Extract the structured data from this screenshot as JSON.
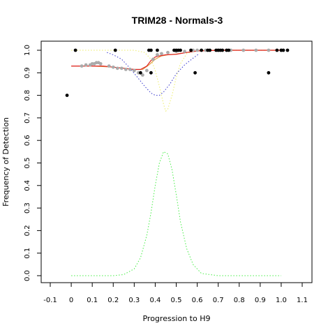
{
  "chart_data": {
    "type": "scatter",
    "title": "TRIM28 - Normals-3",
    "xlabel": "Progression to H9",
    "ylabel": "Frequency of Detection",
    "xlim": [
      -0.1,
      1.1
    ],
    "ylim": [
      0.0,
      1.0
    ],
    "x_ticks": [
      "-0.1",
      "0",
      "0.1",
      "0.2",
      "0.3",
      "0.4",
      "0.5",
      "0.6",
      "0.7",
      "0.8",
      "0.9",
      "1.0",
      "1.1"
    ],
    "y_ticks": [
      "0.0",
      "0.1",
      "0.2",
      "0.3",
      "0.4",
      "0.5",
      "0.6",
      "0.7",
      "0.8",
      "0.9",
      "1.0"
    ],
    "grid": false,
    "legend": "none",
    "colors": {
      "points": "#000000",
      "smoothed_points": "#aaaaaa",
      "red_fit": "#dd2222",
      "orange_fit": "#e6a24a",
      "blue_dotted": "#3333cc",
      "yellow_dotted": "#f0f080",
      "green_dotted": "#44ee44"
    },
    "series": [
      {
        "kind": "points",
        "x": [
          -0.02,
          0.02,
          0.21,
          0.33,
          0.37,
          0.38,
          0.38,
          0.41,
          0.49,
          0.5,
          0.51,
          0.52,
          0.57,
          0.59,
          0.62,
          0.65,
          0.66,
          0.69,
          0.7,
          0.71,
          0.72,
          0.74,
          0.75,
          0.94,
          0.98,
          1.0,
          1.01,
          1.03
        ],
        "y": [
          0.8,
          1.0,
          1.0,
          0.9,
          1.0,
          1.0,
          0.9,
          1.0,
          1.0,
          1.0,
          1.0,
          1.0,
          1.0,
          0.9,
          1.0,
          1.0,
          1.0,
          1.0,
          1.0,
          1.0,
          1.0,
          1.0,
          1.0,
          0.9,
          1.0,
          1.0,
          1.0,
          1.0
        ]
      },
      {
        "kind": "smoothed_points",
        "x": [
          0.05,
          0.07,
          0.09,
          0.1,
          0.11,
          0.12,
          0.13,
          0.14,
          0.18,
          0.2,
          0.22,
          0.24,
          0.26,
          0.28,
          0.3,
          0.32,
          0.34,
          0.36,
          0.39,
          0.41,
          0.43,
          0.46,
          0.5,
          0.54,
          0.58,
          0.6,
          0.64,
          0.7,
          0.76,
          0.82,
          0.88,
          0.94,
          1.0
        ],
        "y": [
          0.93,
          0.935,
          0.935,
          0.94,
          0.94,
          0.945,
          0.945,
          0.94,
          0.93,
          0.925,
          0.92,
          0.92,
          0.915,
          0.915,
          0.91,
          0.9,
          0.89,
          0.91,
          0.96,
          0.98,
          0.985,
          0.99,
          0.995,
          0.995,
          1.0,
          1.0,
          1.0,
          1.0,
          1.0,
          1.0,
          1.0,
          1.0,
          1.0
        ]
      },
      {
        "kind": "red_fit",
        "x": [
          0.0,
          0.05,
          0.1,
          0.15,
          0.2,
          0.25,
          0.3,
          0.33,
          0.36,
          0.38,
          0.4,
          0.42,
          0.45,
          0.5,
          0.55,
          0.6,
          0.7,
          0.8,
          0.9,
          1.0
        ],
        "y": [
          0.93,
          0.93,
          0.93,
          0.93,
          0.925,
          0.92,
          0.915,
          0.915,
          0.93,
          0.955,
          0.97,
          0.975,
          0.98,
          0.982,
          0.99,
          0.997,
          1.0,
          1.0,
          1.0,
          1.0
        ]
      },
      {
        "kind": "orange_fit",
        "x": [
          0.0,
          0.1,
          0.2,
          0.25,
          0.3,
          0.34,
          0.37,
          0.4,
          0.43,
          0.46,
          0.5,
          0.55,
          0.6,
          0.7,
          0.8,
          0.9,
          1.0
        ],
        "y": [
          0.93,
          0.93,
          0.925,
          0.92,
          0.915,
          0.915,
          0.935,
          0.96,
          0.975,
          0.98,
          0.983,
          0.99,
          0.997,
          1.0,
          1.0,
          1.0,
          1.0
        ]
      },
      {
        "kind": "blue_dotted",
        "x": [
          0.17,
          0.2,
          0.24,
          0.28,
          0.32,
          0.35,
          0.38,
          0.4,
          0.42,
          0.44,
          0.47,
          0.5,
          0.54,
          0.58,
          0.61
        ],
        "y": [
          0.99,
          0.98,
          0.96,
          0.92,
          0.875,
          0.84,
          0.81,
          0.8,
          0.8,
          0.815,
          0.85,
          0.895,
          0.935,
          0.965,
          0.985
        ]
      },
      {
        "kind": "yellow_dotted",
        "x": [
          0.0,
          0.1,
          0.2,
          0.3,
          0.35,
          0.38,
          0.4,
          0.42,
          0.44,
          0.45,
          0.46,
          0.48,
          0.5,
          0.52,
          0.55,
          0.6,
          0.7,
          1.0
        ],
        "y": [
          1.0,
          1.0,
          1.0,
          1.0,
          0.99,
          0.96,
          0.91,
          0.84,
          0.76,
          0.73,
          0.74,
          0.8,
          0.88,
          0.94,
          0.985,
          1.0,
          1.0,
          1.0
        ]
      },
      {
        "kind": "green_dotted",
        "x": [
          0.0,
          0.1,
          0.2,
          0.25,
          0.3,
          0.33,
          0.36,
          0.38,
          0.4,
          0.42,
          0.44,
          0.46,
          0.48,
          0.5,
          0.52,
          0.55,
          0.58,
          0.62,
          0.7,
          0.8,
          1.0
        ],
        "y": [
          0.0,
          0.0,
          0.0,
          0.005,
          0.03,
          0.08,
          0.18,
          0.28,
          0.4,
          0.5,
          0.55,
          0.54,
          0.47,
          0.36,
          0.24,
          0.12,
          0.05,
          0.01,
          0.0,
          0.0,
          0.0
        ]
      }
    ]
  }
}
